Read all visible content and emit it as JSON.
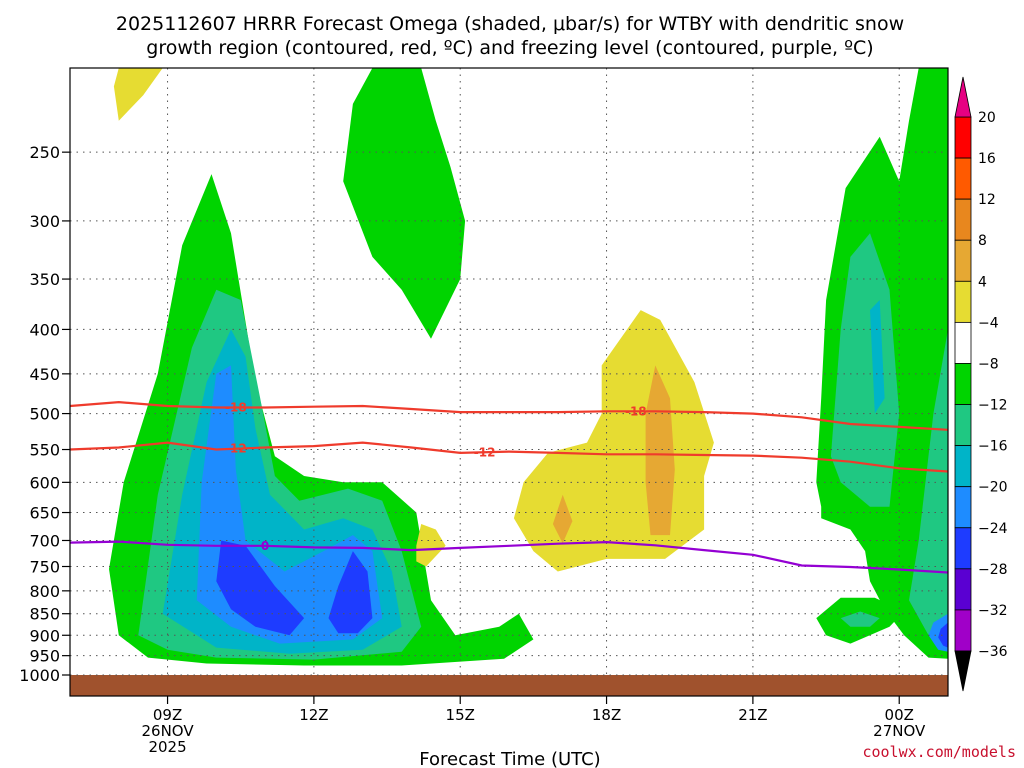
{
  "chart_data": {
    "type": "heatmap",
    "title": [
      "2025112607 HRRR Forecast Omega (shaded, μbar/s) for WTBY with dendritic snow",
      "growth region (contoured, red, ºC) and freezing level (contoured, purple, ºC)"
    ],
    "xlabel": "Forecast Time (UTC)",
    "ylabel": "",
    "credit": "coolwx.com/models",
    "x_range_hours": [
      7,
      25
    ],
    "y_axis": {
      "scale": "log",
      "range_hPa": [
        1000,
        200
      ],
      "reversed": true
    },
    "y_ticks": [
      250,
      300,
      350,
      400,
      450,
      500,
      550,
      600,
      650,
      700,
      750,
      800,
      850,
      900,
      950,
      1000
    ],
    "x_ticks": [
      {
        "hour": 9,
        "label": "09Z",
        "date": "26NOV",
        "year": "2025"
      },
      {
        "hour": 12,
        "label": "12Z",
        "date": "",
        "year": ""
      },
      {
        "hour": 15,
        "label": "15Z",
        "date": "",
        "year": ""
      },
      {
        "hour": 18,
        "label": "18Z",
        "date": "",
        "year": ""
      },
      {
        "hour": 21,
        "label": "21Z",
        "date": "",
        "year": ""
      },
      {
        "hour": 24,
        "label": "00Z",
        "date": "27NOV",
        "year": ""
      }
    ],
    "grid": true,
    "colorbar": {
      "location": "right",
      "levels": [
        20,
        16,
        12,
        8,
        4,
        -4,
        -8,
        -12,
        -16,
        -20,
        -24,
        -28,
        -32,
        -36
      ],
      "colors": [
        "#ff0000",
        "#ff5a00",
        "#e8871e",
        "#e6a833",
        "#e6dc32",
        "#ffffff",
        "#00d400",
        "#1fc882",
        "#00b4c8",
        "#1e8cff",
        "#1e3cff",
        "#5a00d2",
        "#a000c8",
        "#a0a0a0"
      ],
      "top_arrow_color": "#e60082",
      "bottom_arrow_color": "#000000"
    },
    "regions": [
      {
        "name": "omega -4 to -8",
        "color": "#00d400",
        "points": [
          [
            7.8,
            755
          ],
          [
            8.1,
            600
          ],
          [
            8.8,
            450
          ],
          [
            9.3,
            320
          ],
          [
            9.9,
            265
          ],
          [
            10.3,
            310
          ],
          [
            10.8,
            460
          ],
          [
            11.2,
            560
          ],
          [
            11.8,
            590
          ],
          [
            12.6,
            600
          ],
          [
            13.4,
            600
          ],
          [
            14.1,
            650
          ],
          [
            14.4,
            820
          ],
          [
            14.9,
            900
          ],
          [
            15.8,
            880
          ],
          [
            16.2,
            850
          ],
          [
            16.5,
            910
          ],
          [
            15.9,
            958
          ],
          [
            13.8,
            975
          ],
          [
            11.8,
            975
          ],
          [
            9.8,
            970
          ],
          [
            8.6,
            955
          ],
          [
            8.0,
            900
          ]
        ]
      },
      {
        "name": "omega -4 to -8 upper",
        "color": "#00d400",
        "points": [
          [
            12.6,
            270
          ],
          [
            12.8,
            220
          ],
          [
            13.2,
            200
          ],
          [
            14.2,
            200
          ],
          [
            14.5,
            230
          ],
          [
            14.8,
            260
          ],
          [
            15.1,
            300
          ],
          [
            15.0,
            350
          ],
          [
            14.4,
            410
          ],
          [
            13.8,
            360
          ],
          [
            13.2,
            330
          ]
        ]
      },
      {
        "name": "omega -4 to -8 small",
        "color": "#00d400",
        "points": [
          [
            22.3,
            860
          ],
          [
            22.8,
            815
          ],
          [
            23.5,
            815
          ],
          [
            24.1,
            845
          ],
          [
            23.8,
            880
          ],
          [
            23.0,
            920
          ],
          [
            22.5,
            900
          ]
        ]
      },
      {
        "name": "omega -4 to -8 right",
        "color": "#00d400",
        "points": [
          [
            25.0,
            200
          ],
          [
            24.4,
            200
          ],
          [
            24.2,
            230
          ],
          [
            24.0,
            270
          ],
          [
            23.6,
            240
          ],
          [
            22.9,
            275
          ],
          [
            22.5,
            370
          ],
          [
            22.4,
            480
          ],
          [
            22.3,
            600
          ],
          [
            22.4,
            640
          ],
          [
            22.4,
            660
          ],
          [
            23.0,
            680
          ],
          [
            23.3,
            720
          ],
          [
            23.4,
            780
          ],
          [
            23.7,
            840
          ],
          [
            24.1,
            900
          ],
          [
            24.6,
            955
          ],
          [
            25.0,
            958
          ]
        ]
      },
      {
        "name": "omega -8 to -12",
        "color": "#1fc882",
        "points": [
          [
            8.4,
            900
          ],
          [
            8.8,
            620
          ],
          [
            9.5,
            420
          ],
          [
            10.0,
            360
          ],
          [
            10.5,
            370
          ],
          [
            10.9,
            480
          ],
          [
            11.2,
            590
          ],
          [
            11.7,
            630
          ],
          [
            12.7,
            610
          ],
          [
            13.4,
            630
          ],
          [
            13.8,
            720
          ],
          [
            14.2,
            880
          ],
          [
            13.8,
            940
          ],
          [
            12.0,
            960
          ],
          [
            10.0,
            955
          ],
          [
            9.0,
            935
          ]
        ]
      },
      {
        "name": "omega -8 to -12 right",
        "color": "#1fc882",
        "points": [
          [
            22.6,
            560
          ],
          [
            22.8,
            400
          ],
          [
            23.0,
            330
          ],
          [
            23.4,
            310
          ],
          [
            23.8,
            360
          ],
          [
            24.0,
            500
          ],
          [
            23.8,
            640
          ],
          [
            23.4,
            640
          ],
          [
            22.8,
            600
          ]
        ]
      },
      {
        "name": "omega -8 to -12 right lower",
        "color": "#1fc882",
        "points": [
          [
            25.0,
            400
          ],
          [
            24.7,
            500
          ],
          [
            24.4,
            700
          ],
          [
            24.2,
            820
          ],
          [
            24.6,
            900
          ],
          [
            25.0,
            920
          ]
        ]
      },
      {
        "name": "omega -8 to -12 small",
        "color": "#1fc882",
        "points": [
          [
            22.8,
            860
          ],
          [
            23.2,
            845
          ],
          [
            23.6,
            860
          ],
          [
            23.4,
            880
          ],
          [
            23.0,
            880
          ]
        ]
      },
      {
        "name": "omega -12 to -16",
        "color": "#00b4c8",
        "points": [
          [
            8.9,
            850
          ],
          [
            9.3,
            620
          ],
          [
            9.8,
            460
          ],
          [
            10.3,
            400
          ],
          [
            10.6,
            430
          ],
          [
            10.8,
            520
          ],
          [
            11.1,
            620
          ],
          [
            11.8,
            680
          ],
          [
            12.6,
            660
          ],
          [
            13.2,
            680
          ],
          [
            13.6,
            760
          ],
          [
            13.8,
            880
          ],
          [
            13.0,
            935
          ],
          [
            11.5,
            945
          ],
          [
            10.0,
            930
          ]
        ]
      },
      {
        "name": "omega -12 to -16 right",
        "color": "#00b4c8",
        "points": [
          [
            23.4,
            380
          ],
          [
            23.6,
            370
          ],
          [
            23.7,
            480
          ],
          [
            23.5,
            500
          ]
        ]
      },
      {
        "name": "omega -16 to -20",
        "color": "#1e8cff",
        "points": [
          [
            9.6,
            820
          ],
          [
            9.7,
            600
          ],
          [
            10.0,
            450
          ],
          [
            10.3,
            440
          ],
          [
            10.4,
            580
          ],
          [
            10.6,
            700
          ],
          [
            11.4,
            760
          ],
          [
            12.2,
            720
          ],
          [
            12.8,
            690
          ],
          [
            13.2,
            720
          ],
          [
            13.4,
            860
          ],
          [
            12.8,
            910
          ],
          [
            11.3,
            920
          ],
          [
            10.3,
            880
          ]
        ]
      },
      {
        "name": "omega -20 to -24 left",
        "color": "#1e3cff",
        "points": [
          [
            10.0,
            780
          ],
          [
            10.1,
            700
          ],
          [
            10.6,
            710
          ],
          [
            11.2,
            790
          ],
          [
            11.8,
            860
          ],
          [
            11.5,
            900
          ],
          [
            10.8,
            880
          ],
          [
            10.3,
            840
          ]
        ]
      },
      {
        "name": "omega -20 to -24 middle",
        "color": "#1e3cff",
        "points": [
          [
            12.3,
            860
          ],
          [
            12.5,
            790
          ],
          [
            12.8,
            720
          ],
          [
            13.1,
            760
          ],
          [
            13.2,
            860
          ],
          [
            12.9,
            895
          ],
          [
            12.5,
            895
          ]
        ]
      },
      {
        "name": "omega -16 to -20 right",
        "color": "#1e8cff",
        "points": [
          [
            25.0,
            850
          ],
          [
            24.7,
            870
          ],
          [
            24.6,
            900
          ],
          [
            24.8,
            935
          ],
          [
            25.0,
            940
          ]
        ]
      },
      {
        "name": "omega -20 to -24 right",
        "color": "#1e3cff",
        "points": [
          [
            25.0,
            870
          ],
          [
            24.85,
            885
          ],
          [
            24.8,
            905
          ],
          [
            24.9,
            925
          ],
          [
            25.0,
            930
          ]
        ]
      },
      {
        "name": "omega 4 to 8 main",
        "color": "#e6dc32",
        "points": [
          [
            16.1,
            660
          ],
          [
            16.3,
            600
          ],
          [
            16.8,
            555
          ],
          [
            17.6,
            540
          ],
          [
            17.9,
            500
          ],
          [
            17.9,
            440
          ],
          [
            18.7,
            380
          ],
          [
            19.1,
            390
          ],
          [
            19.8,
            460
          ],
          [
            20.2,
            540
          ],
          [
            20.0,
            590
          ],
          [
            20.0,
            680
          ],
          [
            19.2,
            735
          ],
          [
            18.0,
            735
          ],
          [
            17.0,
            760
          ],
          [
            16.5,
            720
          ]
        ]
      },
      {
        "name": "omega 4 to 8 small",
        "color": "#e6dc32",
        "points": [
          [
            14.1,
            710
          ],
          [
            14.2,
            670
          ],
          [
            14.5,
            680
          ],
          [
            14.7,
            710
          ],
          [
            14.3,
            750
          ],
          [
            14.1,
            740
          ]
        ]
      },
      {
        "name": "omega 4 to 8 top",
        "color": "#e6dc32",
        "points": [
          [
            7.9,
            210
          ],
          [
            8.0,
            200
          ],
          [
            8.9,
            200
          ],
          [
            8.5,
            215
          ],
          [
            8.0,
            230
          ]
        ]
      },
      {
        "name": "omega 8 to 12 left",
        "color": "#e6a833",
        "points": [
          [
            16.9,
            670
          ],
          [
            17.1,
            620
          ],
          [
            17.3,
            665
          ],
          [
            17.1,
            705
          ]
        ]
      },
      {
        "name": "omega 8 to 12 right",
        "color": "#e6a833",
        "points": [
          [
            18.8,
            500
          ],
          [
            19.0,
            440
          ],
          [
            19.3,
            480
          ],
          [
            19.4,
            580
          ],
          [
            19.3,
            690
          ],
          [
            18.9,
            690
          ],
          [
            18.8,
            600
          ]
        ]
      }
    ],
    "ground": {
      "color": "#a0522d",
      "pressure_hPa": 1000
    },
    "contours": [
      {
        "name": "-18",
        "label": "-18",
        "color": "#ef3b2c",
        "points": [
          [
            7,
            490
          ],
          [
            8,
            485
          ],
          [
            9,
            490
          ],
          [
            10,
            492
          ],
          [
            11,
            492
          ],
          [
            12,
            491
          ],
          [
            13,
            490
          ],
          [
            14,
            494
          ],
          [
            15,
            498
          ],
          [
            16,
            498
          ],
          [
            17,
            498
          ],
          [
            18,
            497
          ],
          [
            19,
            497
          ],
          [
            20,
            498
          ],
          [
            21,
            500
          ],
          [
            22,
            505
          ],
          [
            23,
            514
          ],
          [
            24,
            518
          ],
          [
            25,
            522
          ]
        ],
        "label_hours": [
          10.4,
          18.6
        ]
      },
      {
        "name": "-12",
        "label": "-12",
        "color": "#ef3b2c",
        "points": [
          [
            7,
            550
          ],
          [
            8,
            547
          ],
          [
            9,
            540
          ],
          [
            10,
            550
          ],
          [
            11,
            547
          ],
          [
            12,
            545
          ],
          [
            13,
            540
          ],
          [
            14,
            547
          ],
          [
            15,
            555
          ],
          [
            16,
            553
          ],
          [
            17,
            555
          ],
          [
            18,
            557
          ],
          [
            19,
            557
          ],
          [
            20,
            558
          ],
          [
            21,
            559
          ],
          [
            22,
            562
          ],
          [
            23,
            568
          ],
          [
            24,
            578
          ],
          [
            25,
            583
          ]
        ],
        "label_hours": [
          10.4,
          15.5
        ]
      },
      {
        "name": "0",
        "label": "0",
        "color": "#9400d3",
        "points": [
          [
            7,
            704
          ],
          [
            8,
            702
          ],
          [
            9,
            708
          ],
          [
            10,
            710
          ],
          [
            11,
            710
          ],
          [
            12,
            713
          ],
          [
            13,
            714
          ],
          [
            14,
            718
          ],
          [
            15,
            714
          ],
          [
            16,
            710
          ],
          [
            17,
            706
          ],
          [
            18,
            703
          ],
          [
            19,
            709
          ],
          [
            20,
            718
          ],
          [
            21,
            727
          ],
          [
            22,
            748
          ],
          [
            23,
            751
          ],
          [
            24,
            756
          ],
          [
            25,
            762
          ]
        ],
        "label_hours": [
          11.0
        ]
      }
    ]
  }
}
